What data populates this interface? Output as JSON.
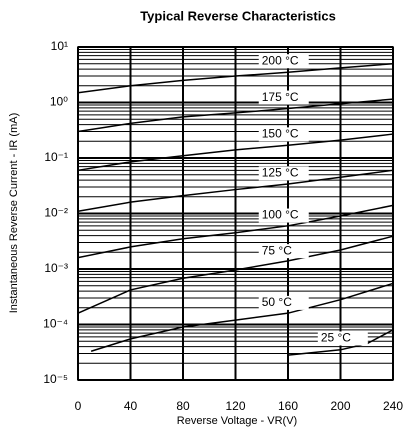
{
  "chart_data": {
    "type": "line",
    "title": "Typical Reverse Characteristics",
    "x_label": "Reverse Voltage - VR(V)",
    "y_label": "Instantaneous Reverse Current - IR (mA)",
    "log_y": true,
    "grid": true,
    "color": "#000000",
    "xlim": [
      0,
      240
    ],
    "xticks": [
      0,
      40,
      80,
      120,
      160,
      200,
      240
    ],
    "ylim": [
      1e-05,
      10
    ],
    "yticks": [
      {
        "value": 1e-05,
        "label": "10⁻⁵"
      },
      {
        "value": 0.0001,
        "label": "10⁻⁴"
      },
      {
        "value": 0.001,
        "label": "10⁻³"
      },
      {
        "value": 0.01,
        "label": "10⁻²"
      },
      {
        "value": 0.1,
        "label": "10⁻¹"
      },
      {
        "value": 1,
        "label": "10⁰"
      },
      {
        "value": 10,
        "label": "10¹"
      }
    ],
    "yticks_minor": [
      2e-05,
      3e-05,
      4e-05,
      5e-05,
      6e-05,
      7e-05,
      8e-05,
      9e-05,
      0.0002,
      0.0003,
      0.0004,
      0.0005,
      0.0006,
      0.0007,
      0.0008,
      0.0009,
      0.002,
      0.003,
      0.004,
      0.005,
      0.006,
      0.007,
      0.008,
      0.009,
      0.02,
      0.03,
      0.04,
      0.05,
      0.06,
      0.07,
      0.08,
      0.09,
      0.2,
      0.3,
      0.4,
      0.5,
      0.6,
      0.7,
      0.8,
      0.9,
      2,
      3,
      4,
      5,
      6,
      7,
      8,
      9
    ],
    "series": [
      {
        "name": "200 °C",
        "x": [
          0,
          40,
          80,
          120,
          160,
          200,
          240
        ],
        "values": [
          1.5,
          2.0,
          2.5,
          3.0,
          3.5,
          4.2,
          5.0
        ]
      },
      {
        "name": "175 °C",
        "x": [
          0,
          40,
          80,
          120,
          160,
          200,
          240
        ],
        "values": [
          0.3,
          0.42,
          0.55,
          0.65,
          0.78,
          0.95,
          1.15
        ]
      },
      {
        "name": "150 °C",
        "x": [
          0,
          40,
          80,
          120,
          160,
          200,
          240
        ],
        "values": [
          0.06,
          0.085,
          0.11,
          0.14,
          0.17,
          0.21,
          0.27
        ]
      },
      {
        "name": "125 °C",
        "x": [
          0,
          40,
          80,
          120,
          160,
          200,
          240
        ],
        "values": [
          0.011,
          0.016,
          0.021,
          0.027,
          0.034,
          0.045,
          0.06
        ]
      },
      {
        "name": "100 °C",
        "x": [
          0,
          40,
          80,
          120,
          160,
          200,
          240
        ],
        "values": [
          0.0016,
          0.0025,
          0.0035,
          0.0045,
          0.006,
          0.009,
          0.014
        ]
      },
      {
        "name": "75 °C",
        "x": [
          0,
          40,
          80,
          120,
          160,
          200,
          240
        ],
        "values": [
          0.00016,
          0.00042,
          0.00068,
          0.00096,
          0.0014,
          0.0022,
          0.0039
        ]
      },
      {
        "name": "50 °C",
        "x": [
          10,
          40,
          80,
          120,
          160,
          200,
          240
        ],
        "values": [
          3.3e-05,
          5.5e-05,
          9e-05,
          0.00012,
          0.00016,
          0.00028,
          0.00055
        ]
      },
      {
        "name": "25 °C",
        "x": [
          160,
          200,
          220,
          240
        ],
        "values": [
          2.8e-05,
          3.5e-05,
          4.5e-05,
          8e-05
        ]
      }
    ]
  }
}
